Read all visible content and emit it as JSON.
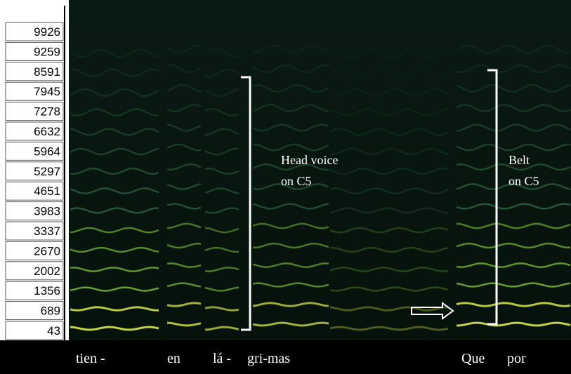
{
  "frequency_labels": [
    9926,
    9259,
    8591,
    7945,
    7278,
    6632,
    5964,
    5297,
    4651,
    3983,
    3337,
    2670,
    2002,
    1356,
    689,
    43
  ],
  "annotations": [
    {
      "lines": [
        "Head voice",
        "on C5"
      ]
    },
    {
      "lines": [
        "Belt",
        "on C5"
      ]
    }
  ],
  "syllables": [
    "tien -",
    "en",
    "lá -",
    "gri-mas",
    "Que",
    "por"
  ]
}
